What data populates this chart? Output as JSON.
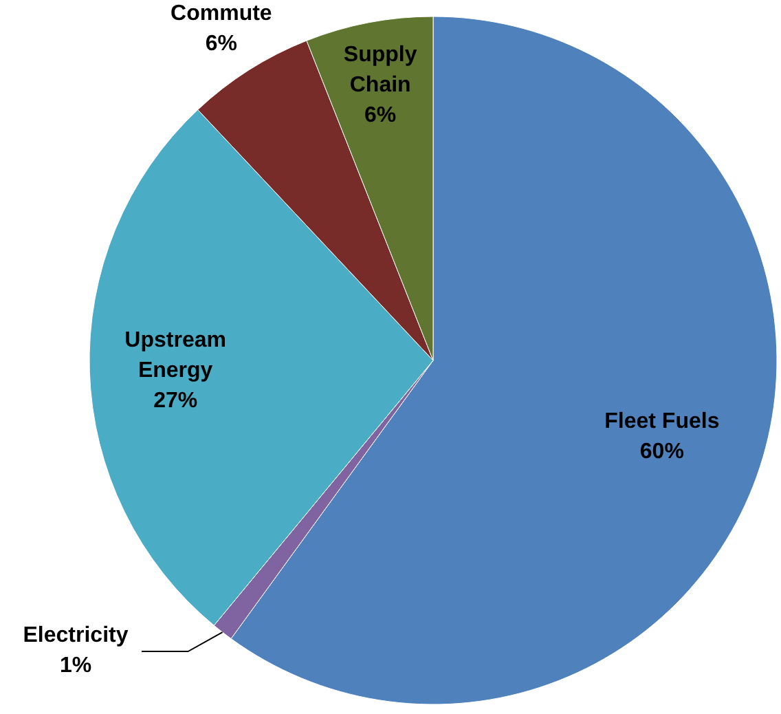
{
  "chart_data": {
    "type": "pie",
    "categories": [
      "Fleet Fuels",
      "Electricity",
      "Upstream Energy",
      "Commute",
      "Supply Chain"
    ],
    "values": [
      60,
      1,
      27,
      6,
      6
    ],
    "value_labels": [
      "60%",
      "1%",
      "27%",
      "6%",
      "6%"
    ],
    "colors": [
      "#4f81bd",
      "#8064a2",
      "#4bacc6",
      "#772c2a",
      "#5f7530"
    ]
  }
}
